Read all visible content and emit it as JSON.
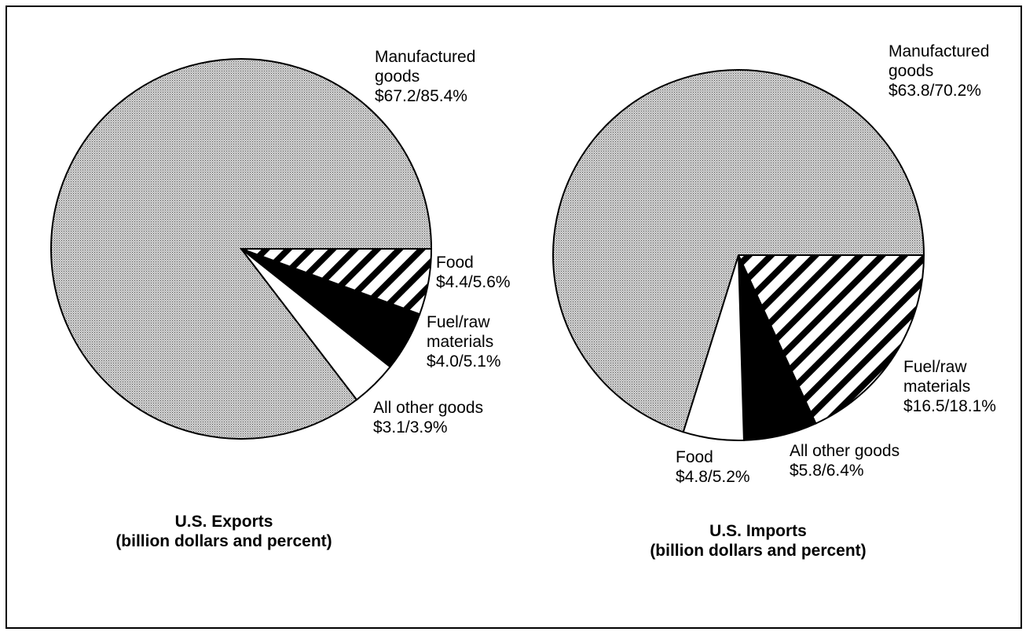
{
  "chart_data": [
    {
      "type": "pie",
      "title": "U.S. Exports",
      "subtitle": "(billion dollars and percent)",
      "categories": [
        "Food",
        "Fuel/raw materials",
        "All other goods",
        "Manufactured goods"
      ],
      "values": [
        4.4,
        4.0,
        3.1,
        67.2
      ],
      "value_labels": [
        "$4.4/5.6%",
        "$4.0/5.1%",
        "$3.1/3.9%",
        "$67.2/85.4%"
      ],
      "colors": [
        "hatch",
        "#000000",
        "#ffffff",
        "dots"
      ]
    },
    {
      "type": "pie",
      "title": "U.S. Imports",
      "subtitle": "(billion dollars and percent)",
      "categories": [
        "Fuel/raw materials",
        "All other goods",
        "Food",
        "Manufactured goods"
      ],
      "values": [
        16.5,
        5.8,
        4.8,
        63.8
      ],
      "value_labels": [
        "$16.5/18.1%",
        "$5.8/6.4%",
        "$4.8/5.2%",
        "$63.8/70.2%"
      ],
      "colors": [
        "hatch",
        "#000000",
        "#ffffff",
        "dots"
      ]
    }
  ]
}
